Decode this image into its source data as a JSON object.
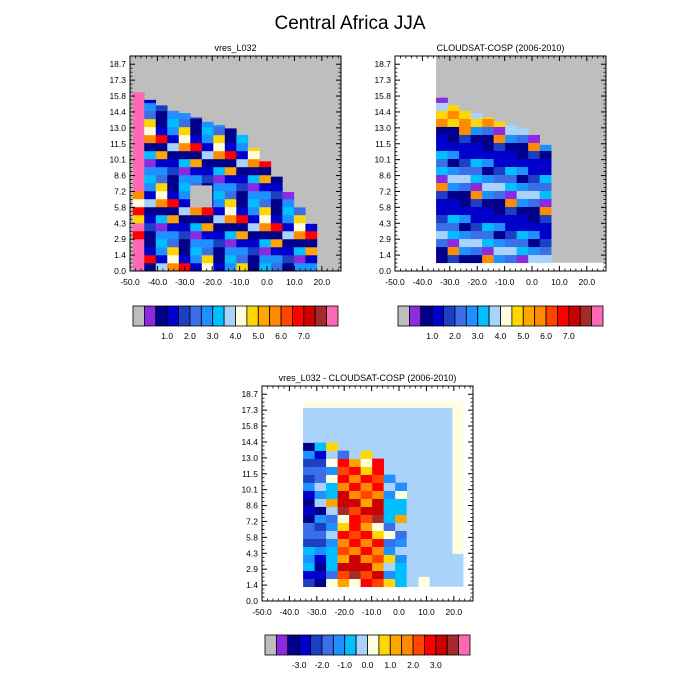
{
  "figure": {
    "title": "Central Africa JJA"
  },
  "chart_data": [
    {
      "type": "heatmap",
      "title": "vres_L032",
      "x_ticks": [
        -50,
        -40,
        -30,
        -20,
        -10,
        0,
        10,
        20
      ],
      "x_tick_labels": [
        "-50.0",
        "-40.0",
        "-30.0",
        "-20.0",
        "-10.0",
        "0.0",
        "10.0",
        "20.0"
      ],
      "xlim": [
        -50,
        27
      ],
      "y_tick_labels": [
        "0.0",
        "1.4",
        "2.9",
        "4.3",
        "5.8",
        "7.2",
        "8.6",
        "10.1",
        "11.5",
        "13.0",
        "14.4",
        "15.8",
        "17.3",
        "18.7"
      ],
      "ylim": [
        0,
        19.6
      ],
      "background_color": "#bebebe",
      "cell_width": 4.2,
      "cell_height": 0.73,
      "column_x_start": [
        -49,
        -44.8,
        -40.6,
        -36.4,
        -32.2,
        -28,
        -23.8,
        -19.6,
        -15.4,
        -11.2,
        -7,
        -2.8,
        1.4,
        5.6,
        9.8,
        14
      ],
      "column_fill_top": [
        16.3,
        15.6,
        15.1,
        14.6,
        14.4,
        14.0,
        13.6,
        13.3,
        13.0,
        12.4,
        11.2,
        10.0,
        8.6,
        7.2,
        5.8,
        4.3
      ],
      "colorbar": {
        "colors": [
          "#bebebe",
          "#8a2be2",
          "#00008b",
          "#0000cd",
          "#1c3fc4",
          "#3a6fe8",
          "#1e90ff",
          "#00bfff",
          "#a9d3fa",
          "#ffffe0",
          "#ffd700",
          "#ffa500",
          "#ff8c00",
          "#ff4500",
          "#ff0000",
          "#cc0000",
          "#a52a2a",
          "#ff69b4"
        ],
        "labels": [
          "1.0",
          "2.0",
          "3.0",
          "4.0",
          "5.0",
          "6.0",
          "7.0"
        ]
      }
    },
    {
      "type": "heatmap",
      "title": "CLOUDSAT-COSP (2006-2010)",
      "x_ticks": [
        -50,
        -40,
        -30,
        -20,
        -10,
        0,
        10,
        20
      ],
      "x_tick_labels": [
        "-50.0",
        "-40.0",
        "-30.0",
        "-20.0",
        "-10.0",
        "0.0",
        "10.0",
        "20.0"
      ],
      "xlim": [
        -50,
        27
      ],
      "y_tick_labels": [
        "0.0",
        "1.4",
        "2.9",
        "4.3",
        "5.8",
        "7.2",
        "8.6",
        "10.1",
        "11.5",
        "13.0",
        "14.4",
        "15.8",
        "17.3",
        "18.7"
      ],
      "ylim": [
        0,
        19.6
      ],
      "background_color": "#bebebe",
      "missing_region_color": "#ffffff",
      "column_x_start": [
        -35,
        -30.8,
        -26.6,
        -22.4,
        -18.2,
        -14,
        -9.8,
        -5.6,
        -1.4,
        2.8
      ],
      "column_fill_top": [
        15.8,
        15.1,
        14.6,
        14.4,
        14.0,
        13.6,
        13.3,
        13.0,
        12.4,
        11.5
      ],
      "colorbar": {
        "colors": [
          "#bebebe",
          "#8a2be2",
          "#00008b",
          "#0000cd",
          "#1c3fc4",
          "#3a6fe8",
          "#1e90ff",
          "#00bfff",
          "#a9d3fa",
          "#ffffe0",
          "#ffd700",
          "#ffa500",
          "#ff8c00",
          "#ff4500",
          "#ff0000",
          "#cc0000",
          "#a52a2a",
          "#ff69b4"
        ],
        "labels": [
          "1.0",
          "2.0",
          "3.0",
          "4.0",
          "5.0",
          "6.0",
          "7.0"
        ]
      }
    },
    {
      "type": "heatmap",
      "title": "vres_L032 - CLOUDSAT-COSP (2006-2010)",
      "x_ticks": [
        -50,
        -40,
        -30,
        -20,
        -10,
        0,
        10,
        20
      ],
      "x_tick_labels": [
        "-50.0",
        "-40.0",
        "-30.0",
        "-20.0",
        "-10.0",
        "0.0",
        "10.0",
        "20.0"
      ],
      "xlim": [
        -50,
        27
      ],
      "y_tick_labels": [
        "0.0",
        "1.4",
        "2.9",
        "4.3",
        "5.8",
        "7.2",
        "8.6",
        "10.1",
        "11.5",
        "13.0",
        "14.4",
        "15.8",
        "17.3",
        "18.7"
      ],
      "ylim": [
        0,
        19.6
      ],
      "background_color": "#ffffff",
      "column_x_start": [
        -35,
        -30.8,
        -26.6,
        -22.4,
        -18.2,
        -14,
        -9.8,
        -5.6,
        -1.4,
        2.8,
        7,
        11.2,
        15.4
      ],
      "colorbar": {
        "colors": [
          "#bebebe",
          "#8a2be2",
          "#00008b",
          "#0000cd",
          "#1c3fc4",
          "#3a6fe8",
          "#1e90ff",
          "#00bfff",
          "#a9d3fa",
          "#ffffe0",
          "#ffd700",
          "#ffa500",
          "#ff8c00",
          "#ff4500",
          "#ff0000",
          "#cc0000",
          "#a52a2a",
          "#ff69b4"
        ],
        "labels": [
          "-3.0",
          "-2.0",
          "-1.0",
          "0.0",
          "1.0",
          "2.0",
          "3.0"
        ]
      }
    }
  ]
}
